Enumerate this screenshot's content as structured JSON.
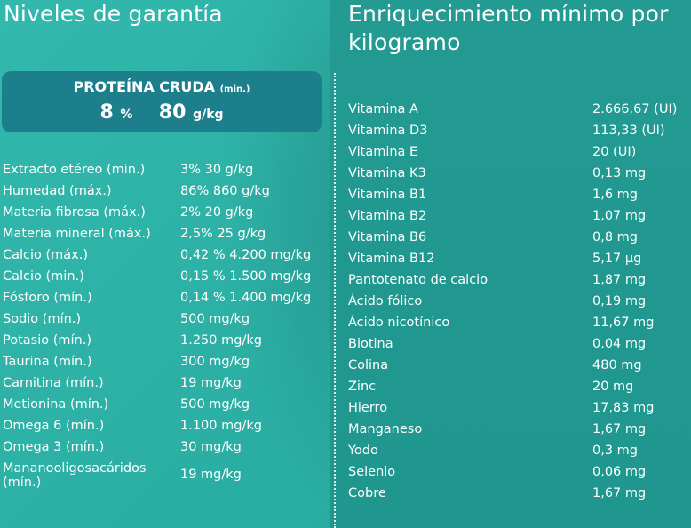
{
  "left": {
    "title": "Niveles de garantía",
    "protein": {
      "label": "PROTEÍNA CRUDA",
      "qualifier": "(min.)",
      "percent_value": "8",
      "percent_unit": "%",
      "amount_value": "80",
      "amount_unit": "g/kg"
    },
    "rows": [
      {
        "name": "Extracto etéreo (min.)",
        "value": "3% 30 g/kg"
      },
      {
        "name": "Humedad (máx.)",
        "value": "86% 860 g/kg"
      },
      {
        "name": "Materia fibrosa (máx.)",
        "value": "2% 20 g/kg"
      },
      {
        "name": "Materia mineral (máx.)",
        "value": "2,5% 25 g/kg"
      },
      {
        "name": "Calcio (máx.)",
        "value": "0,42 % 4.200 mg/kg"
      },
      {
        "name": "Calcio (min.)",
        "value": "0,15 % 1.500 mg/kg"
      },
      {
        "name": "Fósforo (mín.)",
        "value": "0,14 % 1.400 mg/kg"
      },
      {
        "name": "Sodio (mín.)",
        "value": "500 mg/kg"
      },
      {
        "name": "Potasio (mín.)",
        "value": "1.250 mg/kg"
      },
      {
        "name": "Taurina (mín.)",
        "value": "300 mg/kg"
      },
      {
        "name": "Carnitina (mín.)",
        "value": "19 mg/kg"
      },
      {
        "name": "Metionina (mín.)",
        "value": "500 mg/kg"
      },
      {
        "name": "Omega 6 (mín.)",
        "value": "1.100 mg/kg"
      },
      {
        "name": "Omega 3 (mín.)",
        "value": "30 mg/kg"
      },
      {
        "name": "Mananooligosacáridos (mín.)",
        "value": "19 mg/kg"
      }
    ]
  },
  "right": {
    "title": "Enriquecimiento mínimo por kilogramo",
    "rows": [
      {
        "name": "Vitamina A",
        "value": "2.666,67 (UI)"
      },
      {
        "name": "Vitamina D3",
        "value": "113,33 (UI)"
      },
      {
        "name": "Vitamina E",
        "value": "20 (UI)"
      },
      {
        "name": "Vitamina K3",
        "value": "0,13 mg"
      },
      {
        "name": "Vitamina B1",
        "value": "1,6 mg"
      },
      {
        "name": "Vitamina B2",
        "value": "1,07 mg"
      },
      {
        "name": "Vitamina B6",
        "value": "0,8 mg"
      },
      {
        "name": "Vitamina B12",
        "value": "5,17 µg"
      },
      {
        "name": "Pantotenato de calcio",
        "value": "1,87 mg"
      },
      {
        "name": "Ácido fólico",
        "value": "0,19 mg"
      },
      {
        "name": "Ácido nicotínico",
        "value": "11,67 mg"
      },
      {
        "name": "Biotina",
        "value": "0,04 mg"
      },
      {
        "name": "Colina",
        "value": "480 mg"
      },
      {
        "name": "Zinc",
        "value": "20 mg"
      },
      {
        "name": "Hierro",
        "value": "17,83 mg"
      },
      {
        "name": "Manganeso",
        "value": "1,67 mg"
      },
      {
        "name": "Yodo",
        "value": "0,3 mg"
      },
      {
        "name": "Selenio",
        "value": "0,06 mg"
      },
      {
        "name": "Cobre",
        "value": "1,67 mg"
      }
    ]
  },
  "colors": {
    "left_background": "#2fb3a8",
    "right_background": "#209890",
    "protein_box": "#1d7f8c",
    "text": "#ffffff"
  }
}
